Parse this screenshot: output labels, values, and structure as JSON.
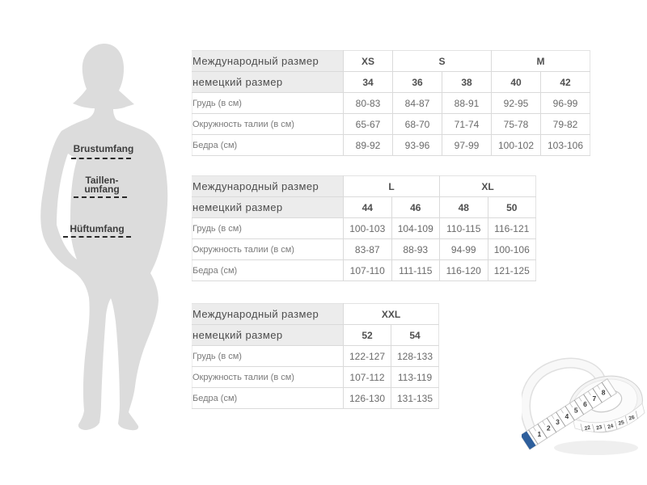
{
  "figure": {
    "bust_label": "Brustumfang",
    "waist_label_line1": "Taillen-",
    "waist_label_line2": "umfang",
    "hip_label": "Hüftumfang"
  },
  "tables": [
    {
      "intl_label": "Международный размер",
      "german_label": "немецкий размер",
      "intl_sizes": [
        {
          "label": "XS",
          "span": 1
        },
        {
          "label": "S",
          "span": 2
        },
        {
          "label": "M",
          "span": 2
        }
      ],
      "german_sizes": [
        "34",
        "36",
        "38",
        "40",
        "42"
      ],
      "rows": [
        {
          "label": "Грудь (в см)",
          "values": [
            "80-83",
            "84-87",
            "88-91",
            "92-95",
            "96-99"
          ]
        },
        {
          "label": "Окружность талии (в см)",
          "values": [
            "65-67",
            "68-70",
            "71-74",
            "75-78",
            "79-82"
          ]
        },
        {
          "label": "Бедра (см)",
          "values": [
            "89-92",
            "93-96",
            "97-99",
            "100-102",
            "103-106"
          ]
        }
      ]
    },
    {
      "intl_label": "Международный размер",
      "german_label": "немецкий размер",
      "intl_sizes": [
        {
          "label": "L",
          "span": 2
        },
        {
          "label": "XL",
          "span": 2
        }
      ],
      "german_sizes": [
        "44",
        "46",
        "48",
        "50"
      ],
      "rows": [
        {
          "label": "Грудь (в см)",
          "values": [
            "100-103",
            "104-109",
            "110-115",
            "116-121"
          ]
        },
        {
          "label": "Окружность талии (в см)",
          "values": [
            "83-87",
            "88-93",
            "94-99",
            "100-106"
          ]
        },
        {
          "label": "Бедра (см)",
          "values": [
            "107-110",
            "111-115",
            "116-120",
            "121-125"
          ]
        }
      ]
    },
    {
      "intl_label": "Международный размер",
      "german_label": "немецкий размер",
      "intl_sizes": [
        {
          "label": "XXL",
          "span": 2
        }
      ],
      "german_sizes": [
        "52",
        "54"
      ],
      "rows": [
        {
          "label": "Грудь (в см)",
          "values": [
            "122-127",
            "128-133"
          ]
        },
        {
          "label": "Окружность талии (в см)",
          "values": [
            "107-112",
            "113-119"
          ]
        },
        {
          "label": "Бедра (см)",
          "values": [
            "126-130",
            "131-135"
          ]
        }
      ]
    }
  ],
  "tape_measure": {
    "strip_numbers": [
      "1",
      "2",
      "3",
      "4",
      "5",
      "6",
      "7",
      "8"
    ],
    "roll_numbers": [
      "22",
      "23",
      "24",
      "25",
      "26"
    ],
    "tip_color": "#2e5f9c"
  },
  "colors": {
    "header_bg": "#ececec",
    "table_border": "#dadada",
    "header_text": "#4d4d4d",
    "cell_text": "#6a6a6a",
    "silhouette": "#dcdcdc",
    "label_text": "#3d3d3d"
  }
}
